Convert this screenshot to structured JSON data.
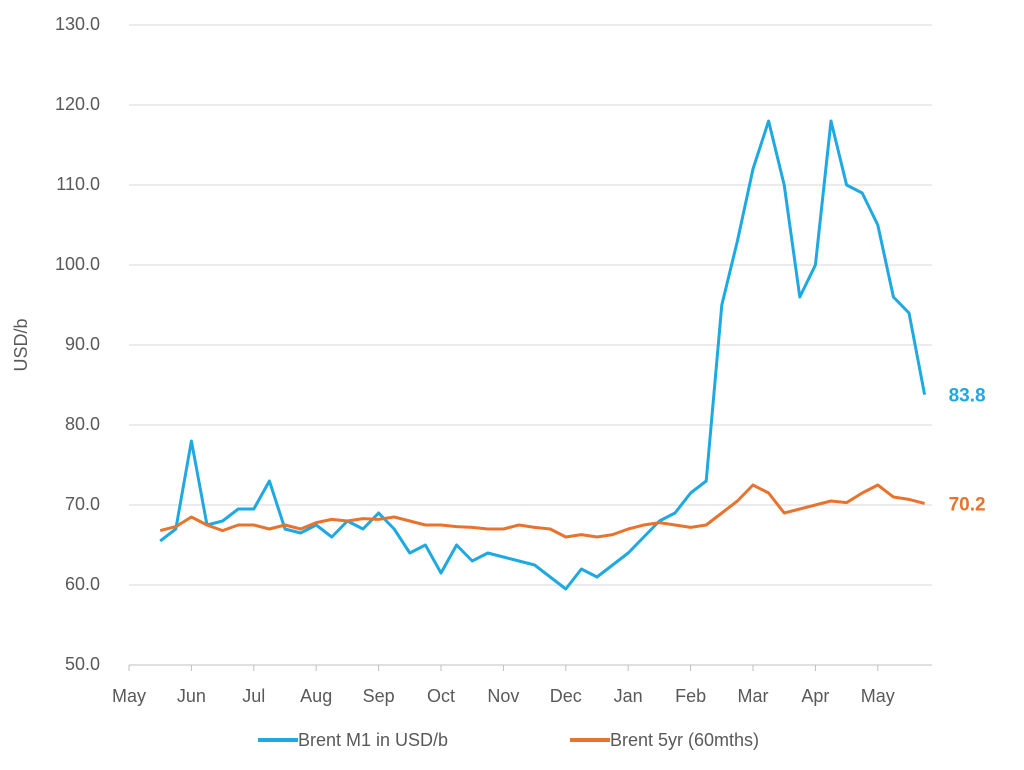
{
  "chart_data": {
    "type": "line",
    "y_label": "USD/b",
    "categories": [
      "May",
      null,
      null,
      null,
      "Jun",
      null,
      null,
      null,
      "Jul",
      null,
      null,
      null,
      "Aug",
      null,
      null,
      null,
      "Sep",
      null,
      null,
      null,
      "Oct",
      null,
      null,
      null,
      "Nov",
      null,
      null,
      null,
      "Dec",
      null,
      null,
      null,
      "Jan",
      null,
      null,
      null,
      "Feb",
      null,
      null,
      null,
      "Mar",
      null,
      null,
      null,
      "Apr",
      null,
      null,
      null,
      "May",
      null,
      null,
      null
    ],
    "series": [
      {
        "name": "Brent M1 in USD/b",
        "color": "#1ea9e1",
        "values": [
          null,
          null,
          65.5,
          67,
          78,
          67.5,
          68,
          69.5,
          69.5,
          73,
          67,
          66.5,
          67.5,
          66,
          68,
          67,
          69,
          67,
          64,
          65,
          61.5,
          65,
          63,
          64,
          63.5,
          63,
          62.5,
          61,
          59.5,
          62,
          61,
          62.5,
          64,
          66,
          68,
          69,
          71.5,
          73,
          95,
          103,
          112,
          118,
          110,
          96,
          100,
          118,
          110,
          109,
          105,
          96,
          94,
          83.8
        ]
      },
      {
        "name": "Brent 5yr (60mths)",
        "color": "#e8732d",
        "values": [
          null,
          null,
          66.8,
          67.3,
          68.5,
          67.5,
          66.8,
          67.5,
          67.5,
          67,
          67.5,
          67,
          67.8,
          68.2,
          68,
          68.3,
          68.2,
          68.5,
          68,
          67.5,
          67.5,
          67.3,
          67.2,
          67,
          67,
          67.5,
          67.2,
          67,
          66,
          66.3,
          66,
          66.3,
          67,
          67.5,
          67.8,
          67.5,
          67.2,
          67.5,
          69,
          70.5,
          72.5,
          71.5,
          69,
          69.5,
          70,
          70.5,
          70.3,
          71.5,
          72.5,
          71,
          70.7,
          70.2
        ]
      }
    ],
    "ylim": [
      50,
      130
    ],
    "yticks": [
      {
        "value": 50,
        "label": "50.0"
      },
      {
        "value": 60,
        "label": "60.0"
      },
      {
        "value": 70,
        "label": "70.0"
      },
      {
        "value": 80,
        "label": "80.0"
      },
      {
        "value": 90,
        "label": "90.0"
      },
      {
        "value": 100,
        "label": "100.0"
      },
      {
        "value": 110,
        "label": "110.0"
      },
      {
        "value": 120,
        "label": "120.0"
      },
      {
        "value": 130,
        "label": "130.0"
      }
    ],
    "grid": true,
    "legend": "bottom"
  }
}
